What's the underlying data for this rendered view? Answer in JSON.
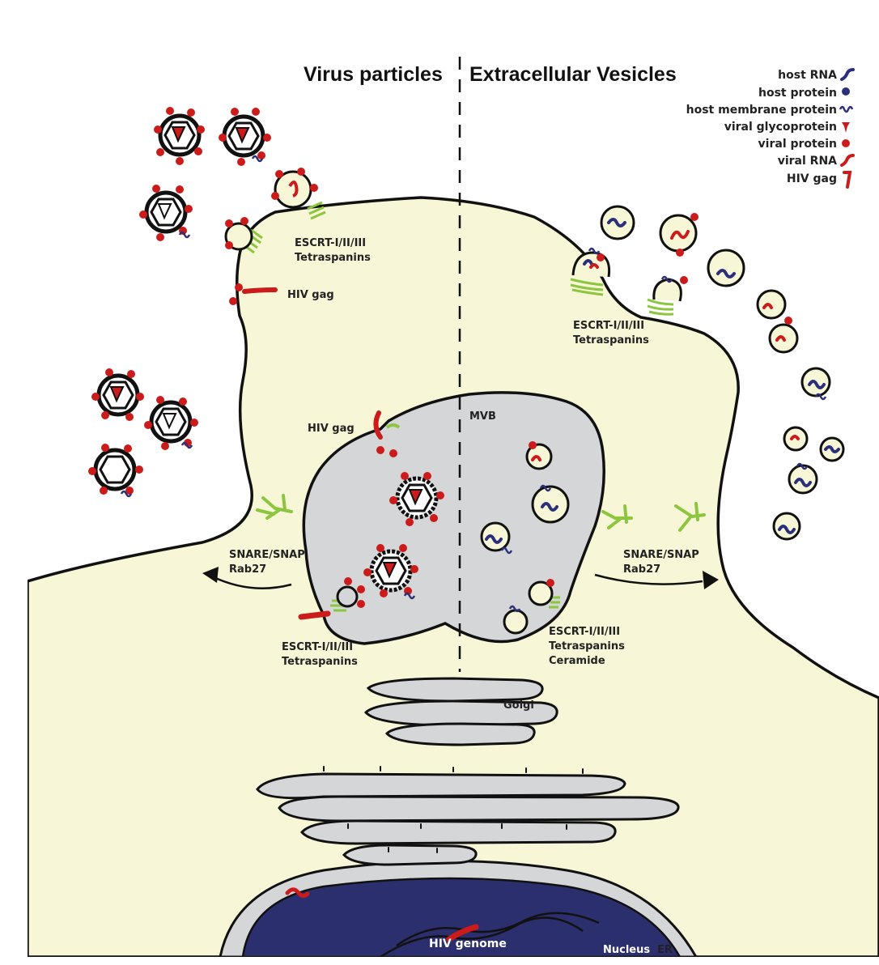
{
  "titles": {
    "left": "Virus particles",
    "right": "Extracellular Vesicles"
  },
  "legend": {
    "items": [
      {
        "label": "host RNA",
        "icon": "host-rna-icon",
        "color": "#2c2f7a"
      },
      {
        "label": "host protein",
        "icon": "host-protein-icon",
        "color": "#2c2f7a"
      },
      {
        "label": "host membrane protein",
        "icon": "host-membrane-protein-icon",
        "color": "#2c2f7a"
      },
      {
        "label": "viral glycoprotein",
        "icon": "viral-glycoprotein-icon",
        "color": "#cc1b1b"
      },
      {
        "label": "viral protein",
        "icon": "viral-protein-icon",
        "color": "#cc1b1b"
      },
      {
        "label": "viral RNA",
        "icon": "viral-rna-icon",
        "color": "#cc1b1b"
      },
      {
        "label": "HIV gag",
        "icon": "hiv-gag-icon",
        "color": "#cc1b1b"
      }
    ]
  },
  "labels": {
    "escrt_left_top": "ESCRT-I/II/III",
    "tetra_left_top": "Tetraspanins",
    "hiv_gag_membrane": "HIV gag",
    "escrt_right_top": "ESCRT-I/II/III",
    "tetra_right_top": "Tetraspanins",
    "hiv_gag_mvb": "HIV gag",
    "mvb": "MVB",
    "snare_left": "SNARE/SNAP",
    "rab_left": "Rab27",
    "snare_right": "SNARE/SNAP",
    "rab_right": "Rab27",
    "escrt_mvb_left": "ESCRT-I/II/III",
    "tetra_mvb_left": "Tetraspanins",
    "escrt_mvb_right": "ESCRT-I/II/III",
    "tetra_mvb_right": "Tetraspanins",
    "ceramide": "Ceramide",
    "golgi": "Golgi",
    "hiv_genome": "HIV genome",
    "nucleus": "Nucleus",
    "er": "ER"
  },
  "colors": {
    "cytoplasm": "#f7f6d6",
    "organelle": "#d5d6d8",
    "nucleus": "#2c2f6e",
    "viral_red": "#cc1b1b",
    "host_blue": "#2c2f7a",
    "escrt_green": "#8cc63e",
    "outline": "#111111"
  }
}
